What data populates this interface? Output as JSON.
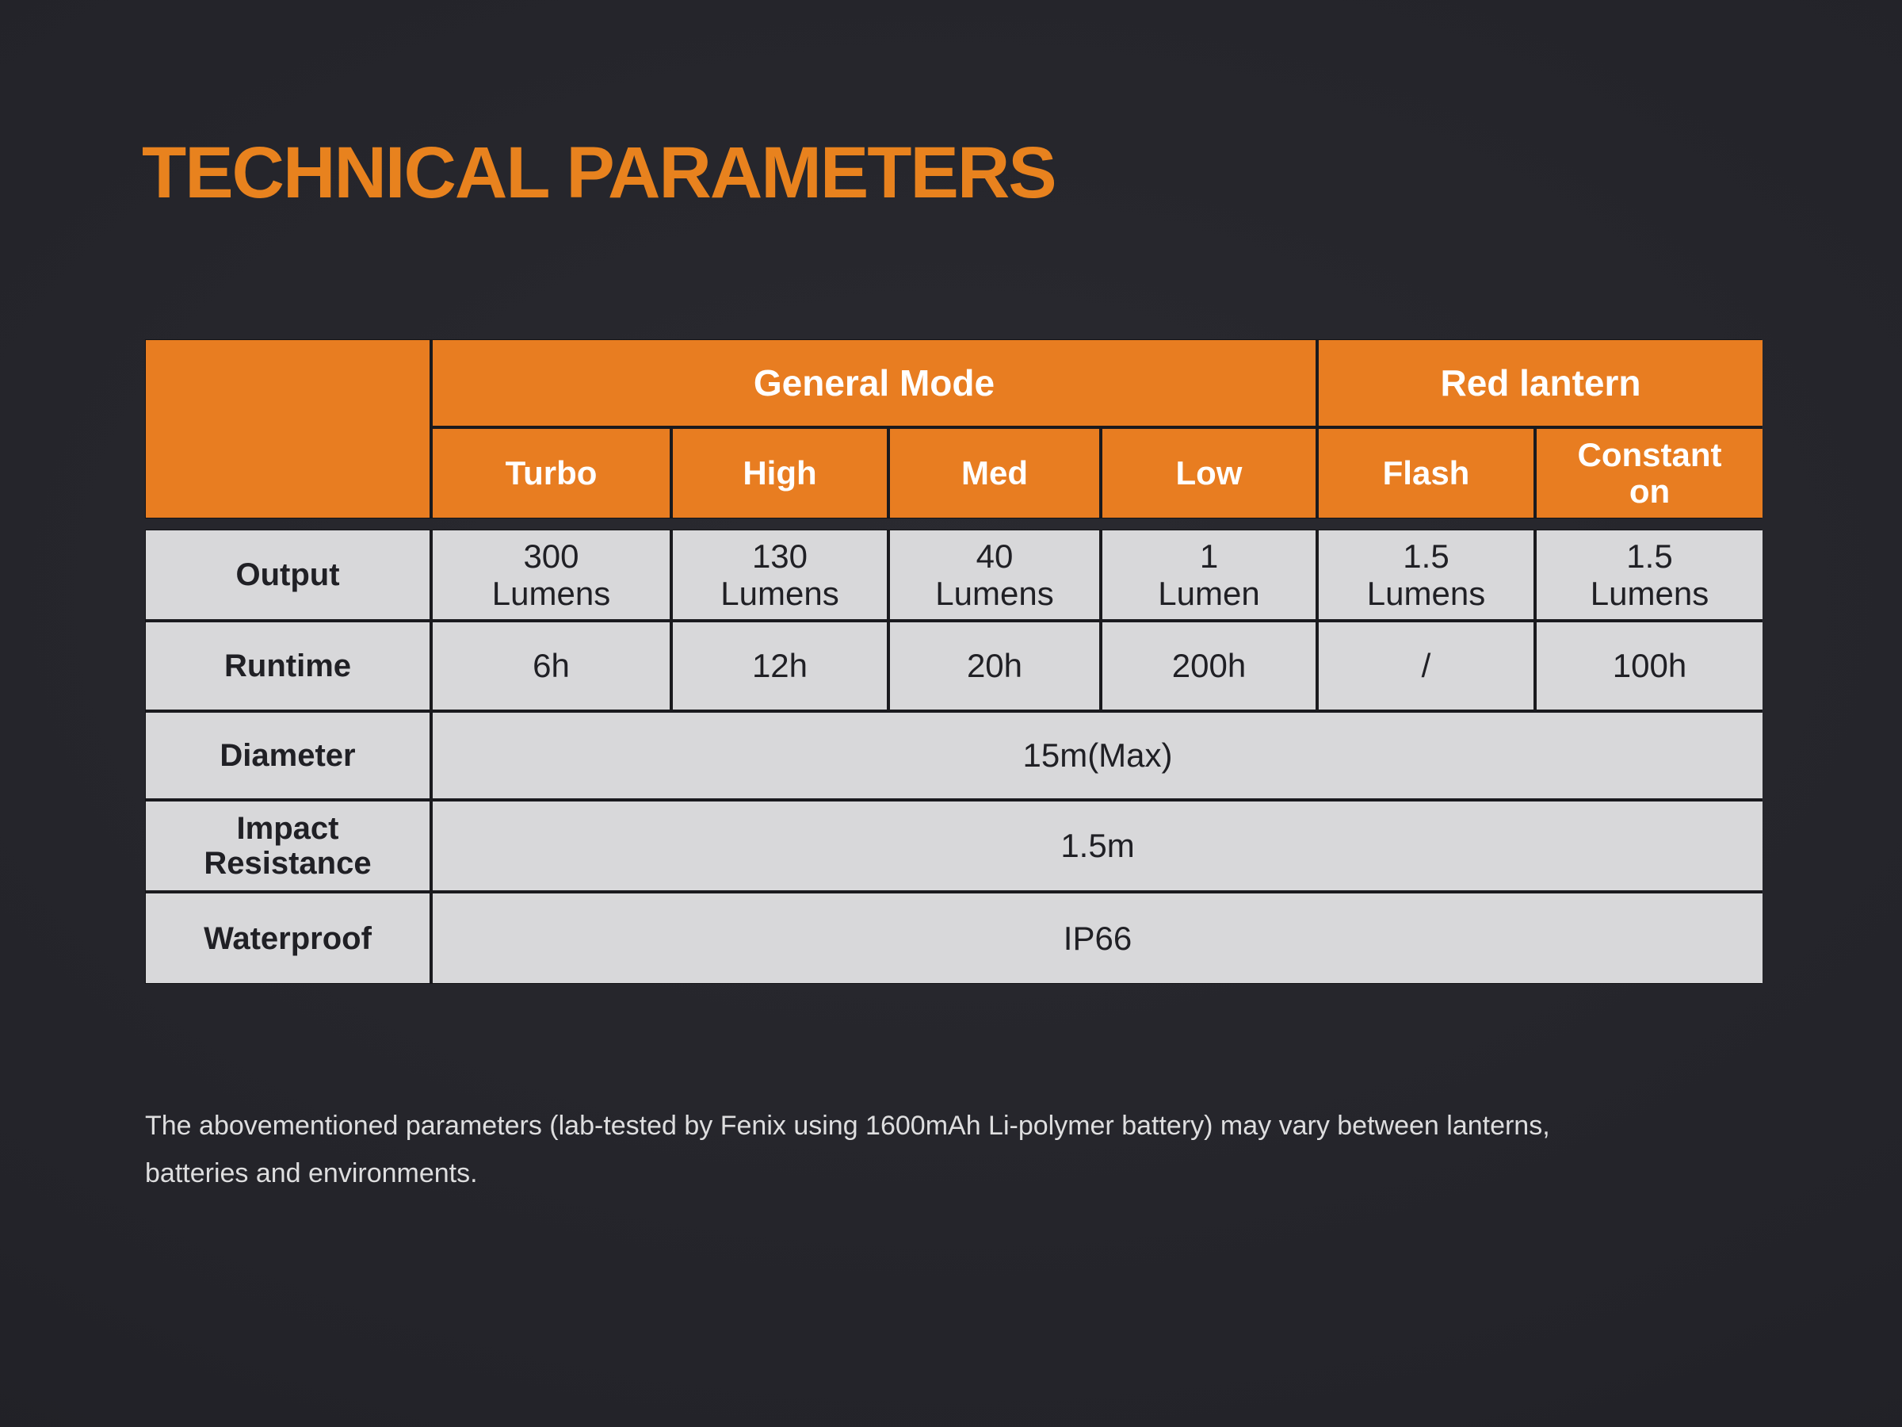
{
  "title": "TECHNICAL PARAMETERS",
  "colors": {
    "accent_orange": "#e8821e",
    "header_cell_bg": "#e87d21",
    "body_cell_bg": "#d8d8da",
    "page_background": "#232329",
    "header_text": "#ffffff",
    "body_text": "#202025"
  },
  "table": {
    "group_headers": [
      {
        "label": "General Mode",
        "span": 4
      },
      {
        "label": "Red lantern",
        "span": 2
      }
    ],
    "mode_headers": [
      "Turbo",
      "High",
      "Med",
      "Low",
      "Flash",
      "Constant on"
    ],
    "rows": [
      {
        "label": "Output",
        "values": [
          "300\nLumens",
          "130\nLumens",
          "40\nLumens",
          "1\nLumen",
          "1.5\nLumens",
          "1.5\nLumens"
        ]
      },
      {
        "label": "Runtime",
        "values": [
          "6h",
          "12h",
          "20h",
          "200h",
          "/",
          "100h"
        ]
      },
      {
        "label": "Diameter",
        "merged_value": "15m(Max)"
      },
      {
        "label": "Impact Resistance",
        "merged_value": "1.5m"
      },
      {
        "label": "Waterproof",
        "merged_value": "IP66"
      }
    ]
  },
  "footer": "The abovementioned parameters (lab-tested by Fenix using 1600mAh Li-polymer battery) may vary between lanterns,\nbatteries and environments."
}
